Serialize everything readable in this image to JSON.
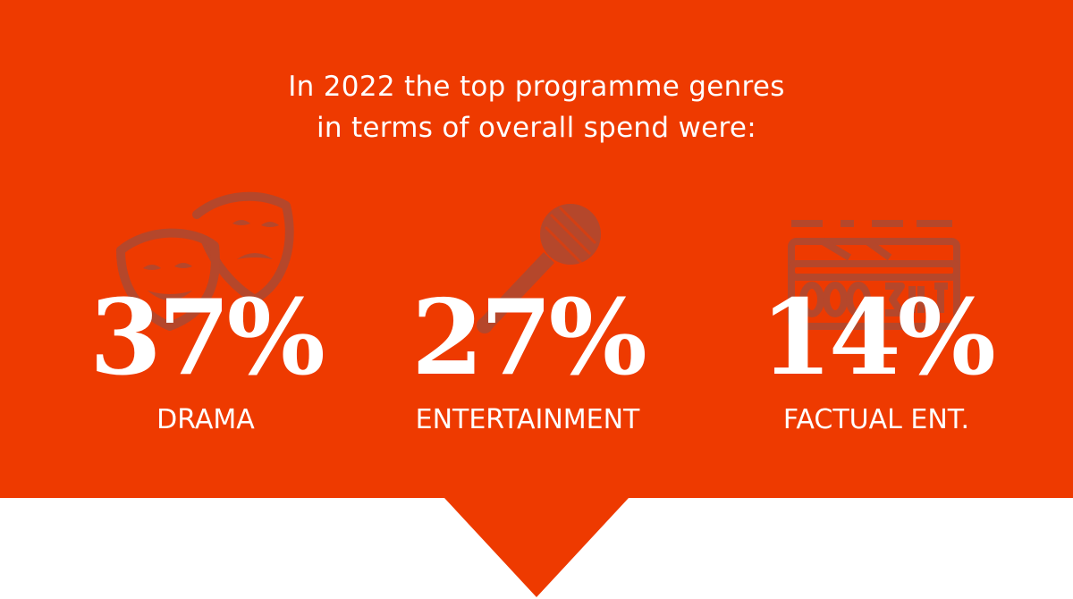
{
  "heading": {
    "line1": "In 2022 the top programme genres",
    "line2": "in terms of overall spend were:"
  },
  "colors": {
    "background": "#ee3a00",
    "icon": "#b5472b",
    "text": "#ffffff"
  },
  "stats": [
    {
      "value": "37%",
      "label": "DRAMA",
      "icon": "theatre-masks-icon"
    },
    {
      "value": "27%",
      "label": "ENTERTAINMENT",
      "icon": "microphone-icon"
    },
    {
      "value": "14%",
      "label": "FACTUAL ENT.",
      "icon": "scoreboard-icon"
    }
  ]
}
